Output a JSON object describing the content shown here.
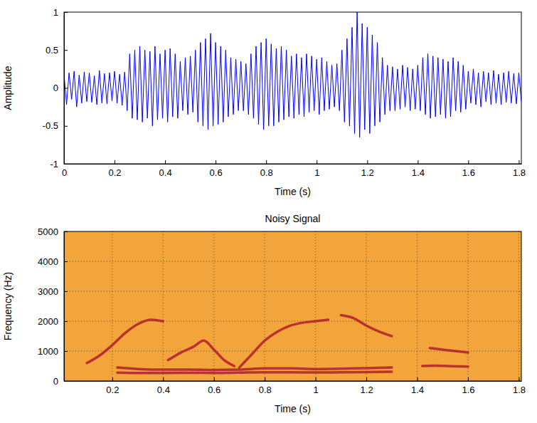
{
  "chart_data": [
    {
      "type": "line",
      "xlabel": "Time (s)",
      "ylabel": "Amplitude",
      "color": "#0000ff",
      "xlim": [
        0,
        1.81
      ],
      "ylim": [
        -1,
        1
      ],
      "xticks": [
        0,
        0.2,
        0.4,
        0.6,
        0.8,
        1,
        1.2,
        1.4,
        1.6,
        1.8
      ],
      "yticks": [
        -1,
        -0.5,
        0,
        0.5,
        1
      ],
      "x": [
        0,
        0.01,
        0.02,
        0.03,
        0.04,
        0.05,
        0.06,
        0.07,
        0.08,
        0.09,
        0.1,
        0.11,
        0.12,
        0.13,
        0.14,
        0.15,
        0.16,
        0.17,
        0.18,
        0.19,
        0.2,
        0.21,
        0.22,
        0.23,
        0.24,
        0.25,
        0.26,
        0.27,
        0.28,
        0.29,
        0.3,
        0.31,
        0.32,
        0.33,
        0.34,
        0.35,
        0.36,
        0.37,
        0.38,
        0.39,
        0.4,
        0.41,
        0.42,
        0.43,
        0.44,
        0.45,
        0.46,
        0.47,
        0.48,
        0.49,
        0.5,
        0.51,
        0.52,
        0.53,
        0.54,
        0.55,
        0.56,
        0.57,
        0.58,
        0.59,
        0.6,
        0.61,
        0.62,
        0.63,
        0.64,
        0.65,
        0.66,
        0.67,
        0.68,
        0.69,
        0.7,
        0.71,
        0.72,
        0.73,
        0.74,
        0.75,
        0.76,
        0.77,
        0.78,
        0.79,
        0.8,
        0.81,
        0.82,
        0.83,
        0.84,
        0.85,
        0.86,
        0.87,
        0.88,
        0.89,
        0.9,
        0.91,
        0.92,
        0.93,
        0.94,
        0.95,
        0.96,
        0.97,
        0.98,
        0.99,
        1,
        1.01,
        1.02,
        1.03,
        1.04,
        1.05,
        1.06,
        1.07,
        1.08,
        1.09,
        1.1,
        1.11,
        1.12,
        1.13,
        1.14,
        1.15,
        1.16,
        1.17,
        1.18,
        1.19,
        1.2,
        1.21,
        1.22,
        1.23,
        1.24,
        1.25,
        1.26,
        1.27,
        1.28,
        1.29,
        1.3,
        1.31,
        1.32,
        1.33,
        1.34,
        1.35,
        1.36,
        1.37,
        1.38,
        1.39,
        1.4,
        1.41,
        1.42,
        1.43,
        1.44,
        1.45,
        1.46,
        1.47,
        1.48,
        1.49,
        1.5,
        1.51,
        1.52,
        1.53,
        1.54,
        1.55,
        1.56,
        1.57,
        1.58,
        1.59,
        1.6,
        1.61,
        1.62,
        1.63,
        1.64,
        1.65,
        1.66,
        1.67,
        1.68,
        1.69,
        1.7,
        1.71,
        1.72,
        1.73,
        1.74,
        1.75,
        1.76,
        1.77,
        1.78,
        1.79,
        1.8,
        1.81
      ],
      "values": [
        0.18,
        -0.22,
        0.2,
        -0.15,
        0.22,
        -0.25,
        0.17,
        -0.2,
        0.21,
        -0.18,
        0.2,
        -0.19,
        0.16,
        -0.22,
        0.23,
        -0.2,
        0.19,
        -0.21,
        0.2,
        -0.17,
        0.22,
        -0.2,
        0.18,
        -0.23,
        0.21,
        -0.3,
        0.45,
        -0.4,
        0.5,
        -0.42,
        0.55,
        -0.45,
        0.5,
        -0.4,
        0.48,
        -0.5,
        0.55,
        -0.42,
        0.45,
        -0.4,
        0.5,
        -0.45,
        0.52,
        -0.38,
        0.45,
        -0.4,
        0.35,
        -0.3,
        0.4,
        -0.35,
        0.42,
        -0.32,
        0.5,
        -0.45,
        0.6,
        -0.5,
        0.65,
        -0.55,
        0.72,
        -0.5,
        0.6,
        -0.48,
        0.55,
        -0.45,
        0.5,
        -0.38,
        0.4,
        -0.35,
        0.38,
        -0.3,
        0.35,
        -0.3,
        0.32,
        -0.35,
        0.45,
        -0.4,
        0.55,
        -0.48,
        0.6,
        -0.55,
        0.65,
        -0.5,
        0.58,
        -0.5,
        0.52,
        -0.45,
        0.55,
        -0.42,
        0.5,
        -0.38,
        0.42,
        -0.4,
        0.45,
        -0.35,
        0.4,
        -0.38,
        0.45,
        -0.32,
        0.42,
        -0.3,
        0.38,
        -0.35,
        0.4,
        -0.3,
        0.35,
        -0.28,
        0.3,
        -0.25,
        0.32,
        -0.3,
        0.5,
        -0.45,
        0.65,
        -0.5,
        0.8,
        -0.6,
        1,
        -0.65,
        0.85,
        -0.55,
        0.8,
        -0.6,
        0.7,
        -0.5,
        0.6,
        -0.45,
        0.4,
        -0.35,
        0.3,
        -0.3,
        0.28,
        -0.3,
        0.25,
        -0.28,
        0.3,
        -0.25,
        0.27,
        -0.3,
        0.25,
        -0.28,
        0.3,
        -0.3,
        0.4,
        -0.35,
        0.45,
        -0.4,
        0.42,
        -0.38,
        0.4,
        -0.35,
        0.38,
        -0.4,
        0.35,
        -0.38,
        0.4,
        -0.3,
        0.35,
        -0.32,
        0.3,
        -0.28,
        0.22,
        -0.2,
        0.25,
        -0.22,
        0.2,
        -0.25,
        0.22,
        -0.18,
        0.2,
        -0.22,
        0.23,
        -0.2,
        0.18,
        -0.22,
        0.2,
        -0.19,
        0.22,
        -0.2,
        0.19,
        -0.21,
        0.2,
        -0.18
      ]
    },
    {
      "type": "spectrogram",
      "title": "Noisy Signal",
      "xlabel": "Time (s)",
      "ylabel": "Frequency (Hz)",
      "grid": true,
      "color": "#b01c2c",
      "xlim": [
        0.01,
        1.81
      ],
      "ylim": [
        0,
        5000
      ],
      "xticks": [
        0.2,
        0.4,
        0.6,
        0.8,
        1,
        1.2,
        1.4,
        1.6,
        1.8
      ],
      "yticks": [
        0,
        1000,
        2000,
        3000,
        4000,
        5000
      ],
      "series": [
        {
          "x": [
            0.22,
            0.3,
            0.4,
            0.5,
            0.6,
            0.7,
            0.8,
            0.9,
            1,
            1.1,
            1.2,
            1.3
          ],
          "values": [
            280,
            270,
            270,
            275,
            270,
            280,
            290,
            290,
            285,
            290,
            300,
            310
          ]
        },
        {
          "x": [
            0.22,
            0.3,
            0.4,
            0.5,
            0.6,
            0.7,
            0.8,
            0.9,
            1,
            1.1,
            1.2,
            1.3
          ],
          "values": [
            450,
            400,
            380,
            380,
            370,
            380,
            420,
            420,
            400,
            410,
            430,
            450
          ]
        },
        {
          "x": [
            0.1,
            0.15,
            0.2,
            0.25,
            0.3,
            0.35,
            0.4
          ],
          "values": [
            600,
            850,
            1200,
            1600,
            1900,
            2050,
            2000
          ]
        },
        {
          "x": [
            0.42,
            0.47,
            0.52,
            0.56,
            0.6,
            0.64,
            0.68
          ],
          "values": [
            700,
            950,
            1150,
            1350,
            1050,
            700,
            500
          ]
        },
        {
          "x": [
            0.7,
            0.75,
            0.8,
            0.85,
            0.9,
            0.95,
            1,
            1.05
          ],
          "values": [
            450,
            900,
            1350,
            1650,
            1850,
            1950,
            2000,
            2050
          ]
        },
        {
          "x": [
            1.1,
            1.15,
            1.2,
            1.25,
            1.3
          ],
          "values": [
            2200,
            2100,
            1850,
            1650,
            1500
          ]
        },
        {
          "x": [
            1.42,
            1.47,
            1.52,
            1.57,
            1.6
          ],
          "values": [
            500,
            510,
            500,
            490,
            480
          ]
        },
        {
          "x": [
            1.45,
            1.5,
            1.55,
            1.6
          ],
          "values": [
            1100,
            1050,
            1000,
            950
          ]
        }
      ]
    }
  ]
}
